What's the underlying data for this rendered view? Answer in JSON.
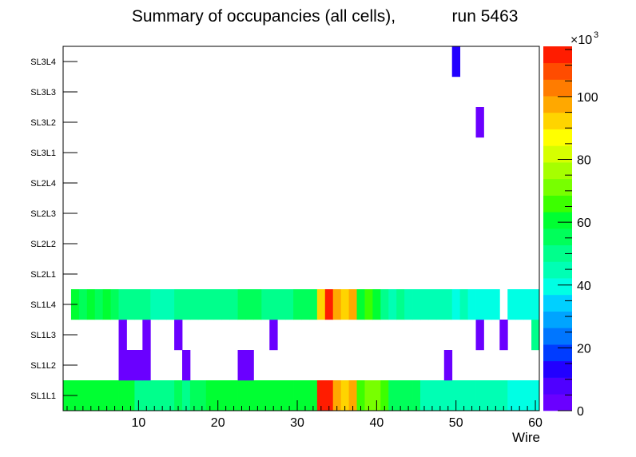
{
  "chart_data": {
    "type": "heatmap",
    "title": "Summary of occupancies (all cells),",
    "run_label": "run 5463",
    "xlabel": "Wire",
    "ylabel": "",
    "xlim": [
      0.5,
      60.5
    ],
    "x_ticks": [
      10,
      20,
      30,
      40,
      50,
      60
    ],
    "x_tick_labels": [
      "10",
      "20",
      "30",
      "40",
      "50",
      "60"
    ],
    "y_categories": [
      "SL1L1",
      "SL1L2",
      "SL1L3",
      "SL1L4",
      "SL2L1",
      "SL2L2",
      "SL2L3",
      "SL2L4",
      "SL3L1",
      "SL3L2",
      "SL3L3",
      "SL3L4"
    ],
    "z_range": [
      0,
      116000
    ],
    "z_ticks": [
      0,
      20,
      40,
      60,
      80,
      100
    ],
    "z_tick_labels": [
      "0",
      "20",
      "40",
      "60",
      "80",
      "100"
    ],
    "z_multiplier": "×10",
    "z_multiplier_exp": "3",
    "palette": [
      "#6a00ff",
      "#4f00ff",
      "#2200ff",
      "#003cff",
      "#0076ff",
      "#00a4ff",
      "#00d0ff",
      "#00ffe4",
      "#00ffb4",
      "#00ff8c",
      "#00ff5a",
      "#00ff32",
      "#3cff00",
      "#78ff00",
      "#a6ff00",
      "#d6ff00",
      "#ffff00",
      "#ffd400",
      "#ffa800",
      "#ff7c00",
      "#ff4c00",
      "#ff1c00"
    ],
    "series": [
      {
        "name": "SL1L1",
        "values": [
          60000,
          60000,
          58000,
          58000,
          58000,
          58000,
          58000,
          58000,
          58000,
          52000,
          52000,
          52000,
          52000,
          52000,
          55000,
          52000,
          55000,
          55000,
          58000,
          58000,
          58000,
          58000,
          58000,
          58000,
          58000,
          58000,
          58000,
          58000,
          58000,
          58000,
          58000,
          60000,
          112000,
          112000,
          100000,
          90000,
          100000,
          65000,
          70000,
          70000,
          65000,
          55000,
          55000,
          55000,
          55000,
          45000,
          45000,
          45000,
          45000,
          45000,
          45000,
          45000,
          45000,
          45000,
          45000,
          45000,
          40000,
          40000,
          40000,
          40000
        ]
      },
      {
        "name": "SL1L2",
        "values": [
          0,
          0,
          0,
          0,
          0,
          0,
          0,
          4000,
          4000,
          4000,
          4000,
          0,
          0,
          0,
          0,
          4000,
          0,
          0,
          0,
          0,
          0,
          0,
          4000,
          4000,
          0,
          0,
          0,
          0,
          0,
          0,
          0,
          0,
          0,
          0,
          0,
          0,
          0,
          0,
          0,
          0,
          0,
          0,
          0,
          0,
          0,
          0,
          0,
          0,
          4000,
          0,
          0,
          0,
          0,
          0,
          0,
          0,
          0,
          0,
          0,
          0
        ]
      },
      {
        "name": "SL1L3",
        "values": [
          0,
          0,
          0,
          0,
          0,
          0,
          0,
          4000,
          0,
          0,
          4000,
          0,
          0,
          0,
          4000,
          0,
          0,
          0,
          0,
          0,
          0,
          0,
          0,
          0,
          0,
          0,
          4000,
          0,
          0,
          0,
          0,
          0,
          0,
          0,
          0,
          0,
          0,
          0,
          0,
          0,
          0,
          0,
          0,
          0,
          0,
          0,
          0,
          0,
          0,
          0,
          0,
          0,
          4000,
          0,
          0,
          4000,
          0,
          0,
          0,
          52000
        ]
      },
      {
        "name": "SL1L4",
        "values": [
          0,
          60000,
          55000,
          60000,
          55000,
          58000,
          55000,
          52000,
          52000,
          52000,
          52000,
          45000,
          45000,
          45000,
          52000,
          52000,
          52000,
          52000,
          48000,
          48000,
          48000,
          48000,
          55000,
          55000,
          55000,
          48000,
          48000,
          48000,
          48000,
          55000,
          55000,
          55000,
          90000,
          112000,
          100000,
          90000,
          100000,
          60000,
          65000,
          60000,
          52000,
          45000,
          48000,
          45000,
          45000,
          45000,
          45000,
          45000,
          45000,
          42000,
          45000,
          40000,
          40000,
          40000,
          40000,
          0,
          40000,
          40000,
          40000,
          40000
        ]
      },
      {
        "name": "SL2L1",
        "values": [
          0,
          0,
          0,
          0,
          0,
          0,
          0,
          0,
          0,
          0,
          0,
          0,
          0,
          0,
          0,
          0,
          0,
          0,
          0,
          0,
          0,
          0,
          0,
          0,
          0,
          0,
          0,
          0,
          0,
          0,
          0,
          0,
          0,
          0,
          0,
          0,
          0,
          0,
          0,
          0,
          0,
          0,
          0,
          0,
          0,
          0,
          0,
          0,
          0,
          0,
          0,
          0,
          0,
          0,
          0,
          0,
          0,
          0,
          0,
          0
        ]
      },
      {
        "name": "SL2L2",
        "values": [
          0,
          0,
          0,
          0,
          0,
          0,
          0,
          0,
          0,
          0,
          0,
          0,
          0,
          0,
          0,
          0,
          0,
          0,
          0,
          0,
          0,
          0,
          0,
          0,
          0,
          0,
          0,
          0,
          0,
          0,
          0,
          0,
          0,
          0,
          0,
          0,
          0,
          0,
          0,
          0,
          0,
          0,
          0,
          0,
          0,
          0,
          0,
          0,
          0,
          0,
          0,
          0,
          0,
          0,
          0,
          0,
          0,
          0,
          0,
          0
        ]
      },
      {
        "name": "SL2L3",
        "values": [
          0,
          0,
          0,
          0,
          0,
          0,
          0,
          0,
          0,
          0,
          0,
          0,
          0,
          0,
          0,
          0,
          0,
          0,
          0,
          0,
          0,
          0,
          0,
          0,
          0,
          0,
          0,
          0,
          0,
          0,
          0,
          0,
          0,
          0,
          0,
          0,
          0,
          0,
          0,
          0,
          0,
          0,
          0,
          0,
          0,
          0,
          0,
          0,
          0,
          0,
          0,
          0,
          0,
          0,
          0,
          0,
          0,
          0,
          0,
          0
        ]
      },
      {
        "name": "SL2L4",
        "values": [
          0,
          0,
          0,
          0,
          0,
          0,
          0,
          0,
          0,
          0,
          0,
          0,
          0,
          0,
          0,
          0,
          0,
          0,
          0,
          0,
          0,
          0,
          0,
          0,
          0,
          0,
          0,
          0,
          0,
          0,
          0,
          0,
          0,
          0,
          0,
          0,
          0,
          0,
          0,
          0,
          0,
          0,
          0,
          0,
          0,
          0,
          0,
          0,
          0,
          0,
          0,
          0,
          0,
          0,
          0,
          0,
          0,
          0,
          0,
          0
        ]
      },
      {
        "name": "SL3L1",
        "values": [
          0,
          0,
          0,
          0,
          0,
          0,
          0,
          0,
          0,
          0,
          0,
          0,
          0,
          0,
          0,
          0,
          0,
          0,
          0,
          0,
          0,
          0,
          0,
          0,
          0,
          0,
          0,
          0,
          0,
          0,
          0,
          0,
          0,
          0,
          0,
          0,
          0,
          0,
          0,
          0,
          0,
          0,
          0,
          0,
          0,
          0,
          0,
          0,
          0,
          0,
          0,
          0,
          0,
          0,
          0,
          0,
          0,
          0,
          0,
          0
        ]
      },
      {
        "name": "SL3L2",
        "values": [
          0,
          0,
          0,
          0,
          0,
          0,
          0,
          0,
          0,
          0,
          0,
          0,
          0,
          0,
          0,
          0,
          0,
          0,
          0,
          0,
          0,
          0,
          0,
          0,
          0,
          0,
          0,
          0,
          0,
          0,
          0,
          0,
          0,
          0,
          0,
          0,
          0,
          0,
          0,
          0,
          0,
          0,
          0,
          0,
          0,
          0,
          0,
          0,
          0,
          0,
          0,
          0,
          4000,
          0,
          0,
          0,
          0,
          0,
          0,
          0
        ]
      },
      {
        "name": "SL3L3",
        "values": [
          0,
          0,
          0,
          0,
          0,
          0,
          0,
          0,
          0,
          0,
          0,
          0,
          0,
          0,
          0,
          0,
          0,
          0,
          0,
          0,
          0,
          0,
          0,
          0,
          0,
          0,
          0,
          0,
          0,
          0,
          0,
          0,
          0,
          0,
          0,
          0,
          0,
          0,
          0,
          0,
          0,
          0,
          0,
          0,
          0,
          0,
          0,
          0,
          0,
          0,
          0,
          0,
          0,
          0,
          0,
          0,
          0,
          0,
          0,
          0
        ]
      },
      {
        "name": "SL3L4",
        "values": [
          0,
          0,
          0,
          0,
          0,
          0,
          0,
          0,
          0,
          0,
          0,
          0,
          0,
          0,
          0,
          0,
          0,
          0,
          0,
          0,
          0,
          0,
          0,
          0,
          0,
          0,
          0,
          0,
          0,
          0,
          0,
          0,
          0,
          0,
          0,
          0,
          0,
          0,
          0,
          0,
          0,
          0,
          0,
          0,
          0,
          0,
          0,
          0,
          0,
          15000,
          0,
          0,
          0,
          0,
          0,
          0,
          0,
          0,
          0,
          0
        ]
      }
    ]
  }
}
